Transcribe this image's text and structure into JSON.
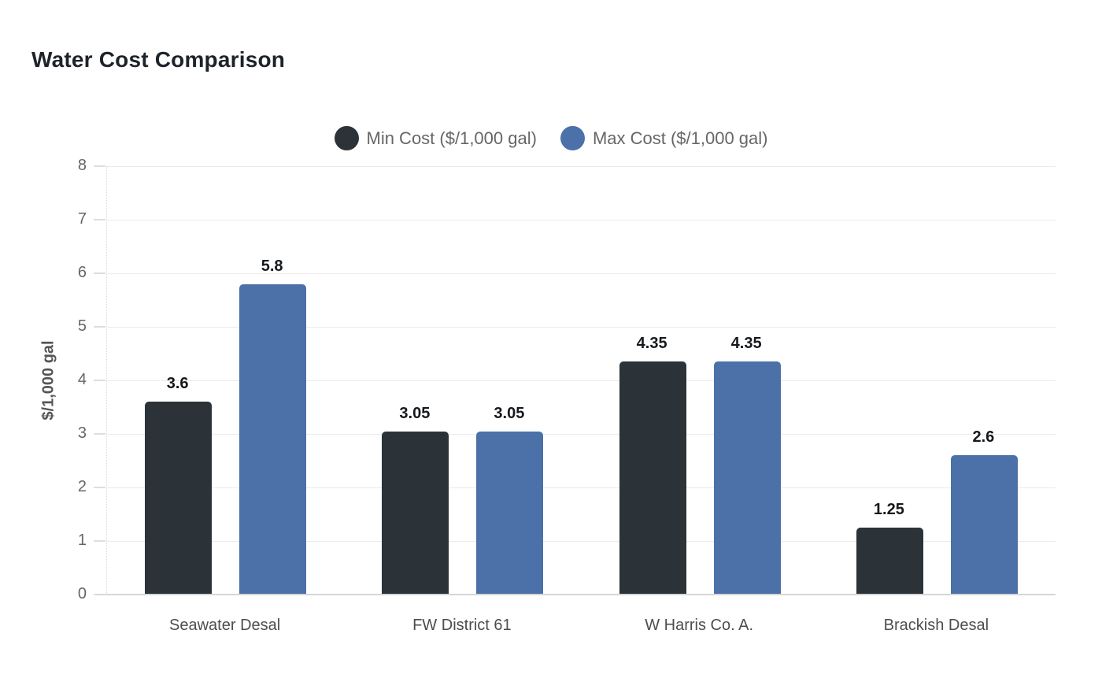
{
  "chart_data": {
    "type": "bar",
    "title": "Water Cost Comparison",
    "categories": [
      "Seawater Desal",
      "FW District 61",
      "W Harris Co. A.",
      "Brackish Desal"
    ],
    "series": [
      {
        "name": "Min Cost ($/1,000 gal)",
        "color": "#2b3338",
        "values": [
          3.6,
          3.05,
          4.35,
          1.25
        ]
      },
      {
        "name": "Max Cost ($/1,000 gal)",
        "color": "#4b71a8",
        "values": [
          5.8,
          3.05,
          4.35,
          2.6
        ]
      }
    ],
    "value_labels": [
      "3.6",
      "3.05",
      "4.35",
      "1.25",
      "5.8",
      "3.05",
      "4.35",
      "2.6"
    ],
    "xlabel": "",
    "ylabel": "$/1,000 gal",
    "ylim": [
      0,
      8
    ],
    "ytick_step": 1,
    "yticks": [
      "0",
      "1",
      "2",
      "3",
      "4",
      "5",
      "6",
      "7",
      "8"
    ],
    "grid": true,
    "legend_position": "top-center",
    "legend_marker": "circle"
  },
  "colors": {
    "background": "#ffffff",
    "title_text": "#1e232b",
    "grid_line": "#ebebeb",
    "baseline": "#d6d6d6",
    "tick_mark": "#dedede",
    "axis_tick_text": "#666666",
    "category_text": "#4d4d4d",
    "legend_text": "#666666",
    "value_label_text": "#15191d",
    "ylabel_text": "#555555"
  }
}
